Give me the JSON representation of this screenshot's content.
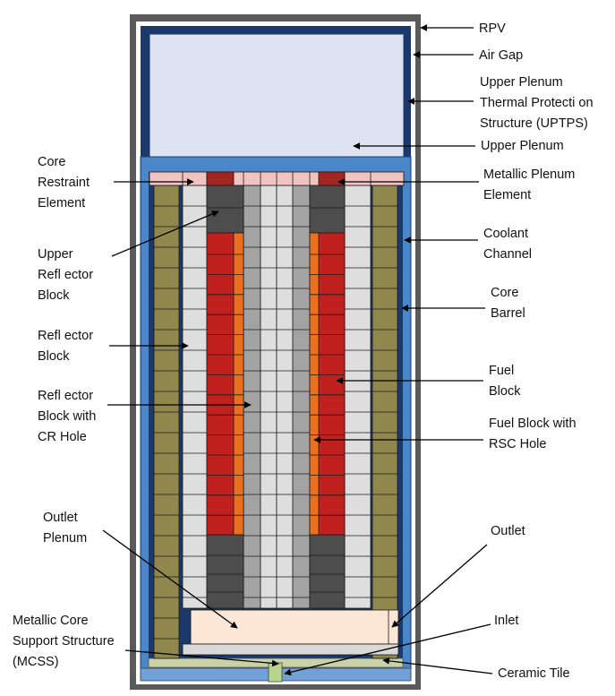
{
  "labels": {
    "rpv": "RPV",
    "air_gap": "Air Gap",
    "uptps": "Upper Plenum\nThermal Protecti on\nStructure (UPTPS)",
    "upper_plenum": "Upper Plenum",
    "metallic_plenum": "Metallic Plenum\nElement",
    "coolant_channel": "Coolant\nChannel",
    "core_barrel": "Core\nBarrel",
    "fuel_block": "Fuel\nBlock",
    "fuel_block_rsc": "Fuel Block with\nRSC Hole",
    "outlet": "Outlet",
    "inlet": "Inlet",
    "ceramic_tile": "Ceramic Tile",
    "core_restraint": "Core\nRestraint\nElement",
    "upper_reflector": "Upper\nRefl ector\nBlock",
    "reflector_block": "Refl ector\nBlock",
    "reflector_cr": "Refl ector\nBlock with\nCR Hole",
    "outlet_plenum": "Outlet\nPlenum",
    "mcss": "Metallic Core\nSupport Structure\n(MCSS)"
  },
  "colors": {
    "rpv": "#5a5a5a",
    "air_gap": "#ffffff",
    "uptps": "#1b3a6b",
    "upper_plenum": "#dde3f1",
    "core_barrel": "#4a86c8",
    "side_reflector": "#8f874c",
    "reflector": "#dedede",
    "reflector_cr": "#a3a3a3",
    "upper_reflector": "#4d4d4d",
    "fuel": "#c0201e",
    "fuel_rsc": "#e8701f",
    "metallic_plenum": "#a32522",
    "core_restraint": "#f1c3c3",
    "outlet_plenum": "#fce6d6",
    "ceramic_tile": "#c9d2a6",
    "inlet": "#b9d48c",
    "bottom": "#72a0d8"
  }
}
